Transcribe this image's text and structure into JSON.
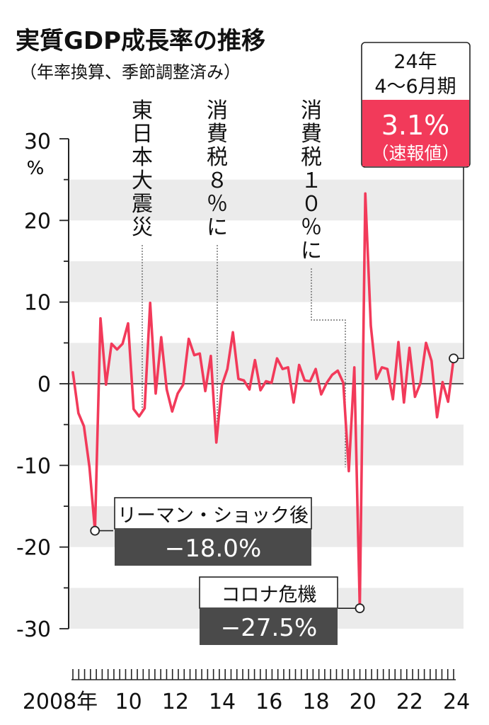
{
  "chart_data": {
    "type": "line",
    "title": "実質GDP成長率の推移",
    "subtitle": "（年率換算、季節調整済み）",
    "y_unit": "%",
    "ylim": [
      -30,
      30
    ],
    "y_ticks": [
      {
        "value": 30,
        "label": "30"
      },
      {
        "value": 20,
        "label": "20"
      },
      {
        "value": 10,
        "label": "10"
      },
      {
        "value": 0,
        "label": "0"
      },
      {
        "value": -10,
        "label": "-10"
      },
      {
        "value": -20,
        "label": "-20"
      },
      {
        "value": -30,
        "label": "-30"
      }
    ],
    "x_tick_labels": [
      {
        "year": 2008,
        "label": "2008年"
      },
      {
        "year": 2010,
        "label": "10"
      },
      {
        "year": 2012,
        "label": "12"
      },
      {
        "year": 2014,
        "label": "14"
      },
      {
        "year": 2016,
        "label": "16"
      },
      {
        "year": 2018,
        "label": "18"
      },
      {
        "year": 2020,
        "label": "20"
      },
      {
        "year": 2022,
        "label": "22"
      },
      {
        "year": 2024,
        "label": "24"
      }
    ],
    "x_range_years": [
      2008,
      2024
    ],
    "grid": "alternating horizontal bands",
    "line_color": "#f23a5a",
    "series": [
      {
        "values": [
          1.4,
          -3.6,
          -5.2,
          -10.2,
          -18.0,
          8.0,
          -0.1,
          4.9,
          4.2,
          4.9,
          7.4,
          -3.1,
          -4.0,
          -3.0,
          9.9,
          -1.2,
          5.7,
          -0.7,
          -3.4,
          -1.2,
          -0.1,
          5.5,
          3.5,
          3.7,
          -0.9,
          3.4,
          -7.2,
          -0.2,
          1.8,
          6.3,
          0.6,
          0.4,
          -0.7,
          2.9,
          -0.8,
          0.3,
          0.1,
          3.1,
          1.8,
          2.0,
          -2.3,
          2.3,
          0.4,
          0.3,
          1.8,
          -1.3,
          0.1,
          1.1,
          1.6,
          0.1,
          -10.7,
          2.0,
          -27.5,
          23.3,
          7.1,
          0.6,
          2.0,
          1.8,
          -1.9,
          5.1,
          -2.3,
          4.4,
          -1.6,
          0.1,
          5.0,
          2.8,
          -4.1,
          0.2,
          -2.2,
          3.1
        ]
      }
    ],
    "annotations": [
      {
        "label": "東日本大震災",
        "vertical": true,
        "year": 2011.25
      },
      {
        "label": "消費税８％に",
        "vertical": true,
        "year": 2014.25
      },
      {
        "label": "消費税１０％に",
        "vertical": true,
        "year": 2019.75
      },
      {
        "label": "リーマン・ショック後",
        "value_label": "−18.0%",
        "value": -18.0
      },
      {
        "label": "コロナ危機",
        "value_label": "−27.5%",
        "value": -27.5
      },
      {
        "label_line1": "24年",
        "label_line2": "4〜6月期",
        "value_label": "3.1%",
        "note": "（速報値）",
        "value": 3.1
      }
    ]
  }
}
